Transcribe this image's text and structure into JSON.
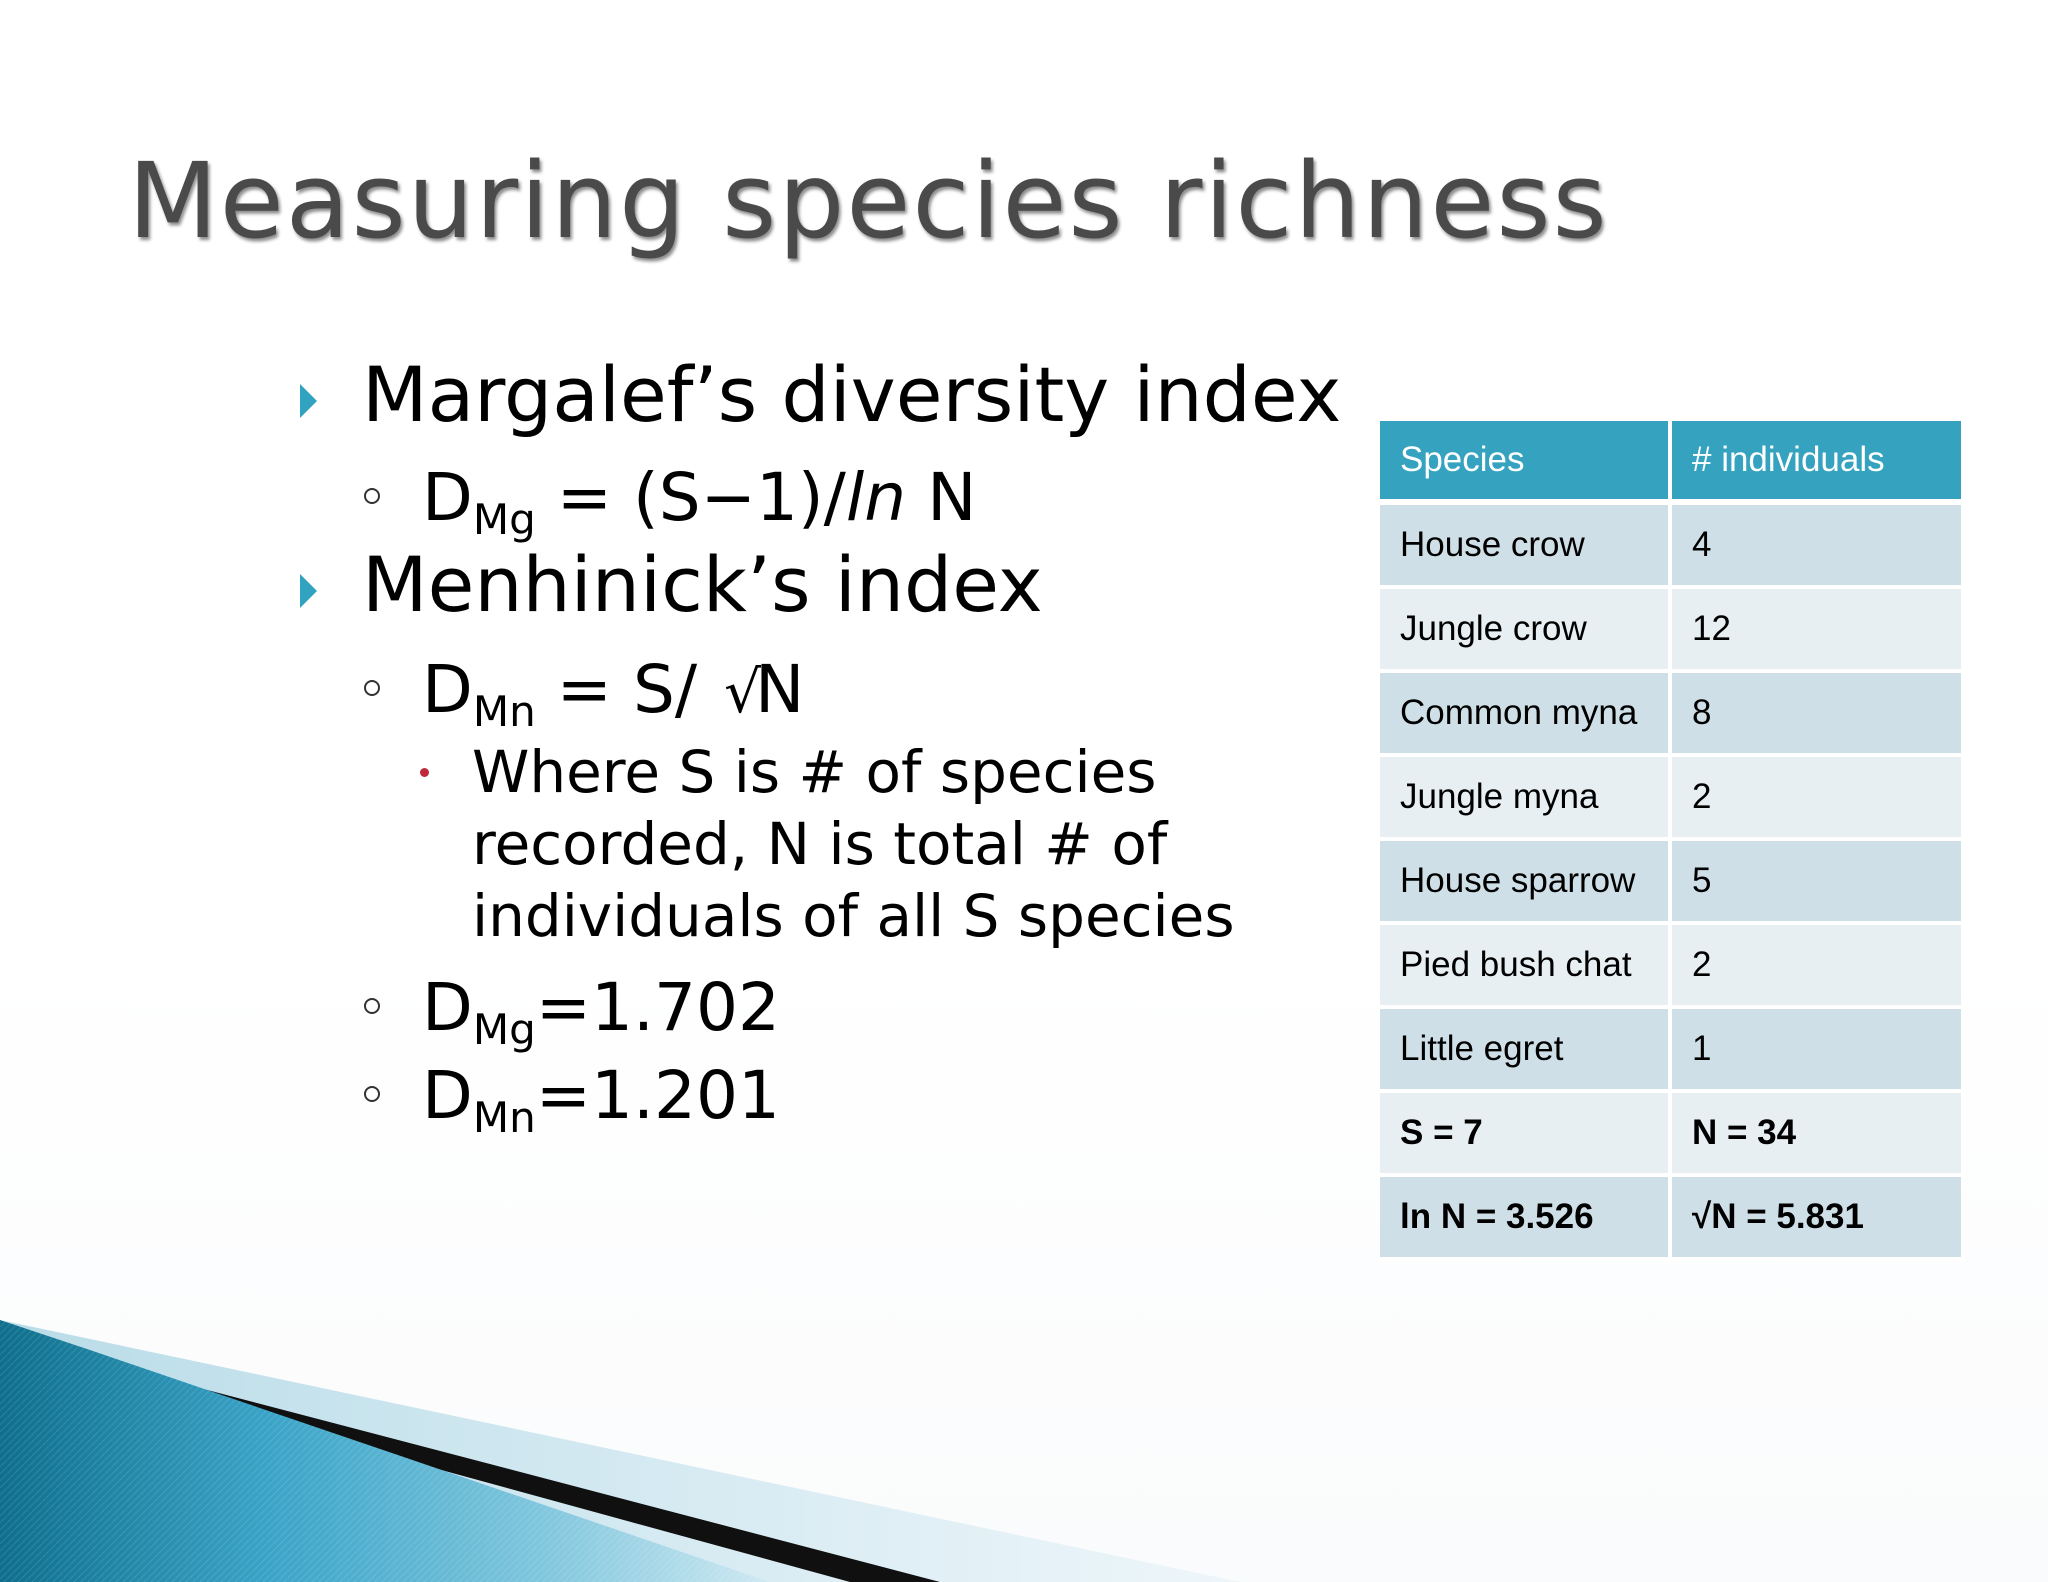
{
  "title": "Measuring species richness",
  "bullets": {
    "margalef": {
      "label": "Margalef’s diversity index",
      "formula_main": "D",
      "formula_sub": "Mg",
      "formula_eq": " = (S−1)/",
      "formula_ln": "ln",
      "formula_tail": " N"
    },
    "menhinick": {
      "label": "Menhinick’s index",
      "formula_main": "D",
      "formula_sub": "Mn",
      "formula_eq": " = S/ ",
      "formula_radical": "√",
      "formula_tail": "N"
    },
    "where_note": "Where S is # of species recorded, N is total # of individuals of all S species",
    "result_mg": {
      "main": "D",
      "sub": "Mg",
      "value": "=1.702"
    },
    "result_mn": {
      "main": "D",
      "sub": "Mn",
      "value": "=1.201"
    }
  },
  "table": {
    "headers": [
      "Species",
      "# individuals"
    ],
    "rows": [
      [
        "House crow",
        "4"
      ],
      [
        "Jungle crow",
        "12"
      ],
      [
        "Common myna",
        "8"
      ],
      [
        "Jungle myna",
        "2"
      ],
      [
        "House sparrow",
        "5"
      ],
      [
        "Pied bush chat",
        "2"
      ],
      [
        "Little egret",
        "1"
      ]
    ],
    "summary_rows": [
      [
        "S = 7",
        "N = 34"
      ],
      [
        "ln N = 3.526",
        "√N = 5.831"
      ]
    ]
  },
  "colors": {
    "accent": "#35a2bf",
    "row_dark": "#cfdfe7",
    "row_light": "#e7eff3",
    "title_gray": "#4a4a4a",
    "sub_bullet": "#c0283c"
  }
}
